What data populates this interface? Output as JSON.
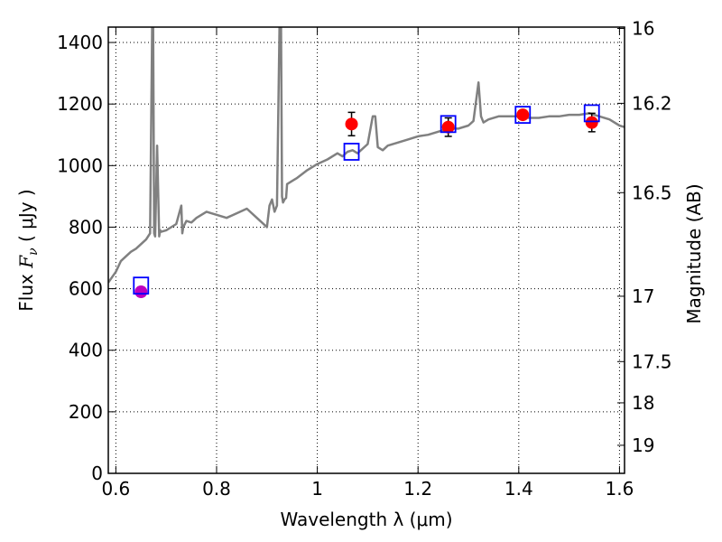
{
  "chart_data": {
    "type": "line",
    "title": "",
    "xlabel": "Wavelength  λ (μm)",
    "ylabel": "Flux  F_ν  ( μJy )",
    "ylabel_parts": {
      "prefix": "Flux  ",
      "symbol": "F",
      "sub": "ν",
      "unit": "  ( μJy )"
    },
    "y2label": "Magnitude (AB)",
    "xlim": [
      0.585,
      1.61
    ],
    "ylim": [
      0,
      1450
    ],
    "grid": true,
    "x_ticks": [
      0.6,
      0.8,
      1.0,
      1.2,
      1.4,
      1.6
    ],
    "x_tick_labels": [
      "0.6",
      "0.8",
      "1",
      "1.2",
      "1.4",
      "1.6"
    ],
    "y_ticks": [
      0,
      200,
      400,
      600,
      800,
      1000,
      1200,
      1400
    ],
    "y_tick_labels": [
      "0",
      "200",
      "400",
      "600",
      "800",
      "1000",
      "1200",
      "1400"
    ],
    "y2_ticks": [
      16,
      16.2,
      16.5,
      17,
      17.5,
      18,
      19
    ],
    "y2_tick_labels": [
      "16",
      "16.2",
      "16.5",
      "17",
      "17.5",
      "18",
      "19"
    ],
    "colors": {
      "spectrum": "#808080",
      "model_points": "#0000ff",
      "observed_points": "#ff0000",
      "observed_optical": "#bf00bf",
      "error_bars": "#000000",
      "grid": "#000000"
    },
    "series": [
      {
        "name": "spectrum",
        "style": "line",
        "x": [
          0.585,
          0.6,
          0.61,
          0.62,
          0.63,
          0.64,
          0.65,
          0.66,
          0.668,
          0.672,
          0.674,
          0.676,
          0.678,
          0.682,
          0.686,
          0.688,
          0.69,
          0.7,
          0.72,
          0.73,
          0.732,
          0.734,
          0.74,
          0.75,
          0.76,
          0.78,
          0.8,
          0.82,
          0.84,
          0.86,
          0.88,
          0.9,
          0.905,
          0.91,
          0.915,
          0.92,
          0.925,
          0.928,
          0.93,
          0.932,
          0.935,
          0.938,
          0.94,
          0.95,
          0.96,
          0.98,
          1.0,
          1.02,
          1.04,
          1.05,
          1.06,
          1.07,
          1.08,
          1.1,
          1.11,
          1.115,
          1.12,
          1.13,
          1.14,
          1.16,
          1.18,
          1.2,
          1.22,
          1.24,
          1.26,
          1.28,
          1.3,
          1.31,
          1.32,
          1.325,
          1.33,
          1.34,
          1.36,
          1.38,
          1.4,
          1.42,
          1.44,
          1.46,
          1.48,
          1.5,
          1.52,
          1.54,
          1.56,
          1.58,
          1.6,
          1.61
        ],
        "y": [
          620,
          655,
          690,
          705,
          720,
          730,
          745,
          760,
          780,
          1450,
          1450,
          780,
          770,
          1065,
          770,
          790,
          785,
          790,
          810,
          870,
          780,
          800,
          820,
          815,
          830,
          850,
          840,
          830,
          845,
          860,
          830,
          800,
          870,
          890,
          850,
          870,
          1450,
          1450,
          900,
          880,
          890,
          895,
          940,
          950,
          960,
          985,
          1005,
          1020,
          1040,
          1030,
          1045,
          1050,
          1040,
          1070,
          1160,
          1160,
          1060,
          1050,
          1065,
          1075,
          1085,
          1095,
          1100,
          1110,
          1120,
          1120,
          1130,
          1145,
          1270,
          1160,
          1140,
          1150,
          1160,
          1160,
          1160,
          1155,
          1155,
          1160,
          1160,
          1165,
          1165,
          1170,
          1160,
          1150,
          1130,
          1125
        ]
      },
      {
        "name": "model photometry",
        "style": "open-square",
        "x": [
          0.65,
          1.068,
          1.26,
          1.408,
          1.545
        ],
        "y": [
          610,
          1045,
          1135,
          1165,
          1170
        ]
      },
      {
        "name": "observed photometry",
        "style": "filled-circle",
        "x": [
          0.65,
          1.068,
          1.26,
          1.408,
          1.545
        ],
        "y": [
          590,
          1135,
          1125,
          1165,
          1140
        ],
        "yerr": [
          15,
          38,
          30,
          0,
          30
        ],
        "point_colors": [
          "observed_optical",
          "observed_points",
          "observed_points",
          "observed_points",
          "observed_points"
        ]
      }
    ]
  }
}
